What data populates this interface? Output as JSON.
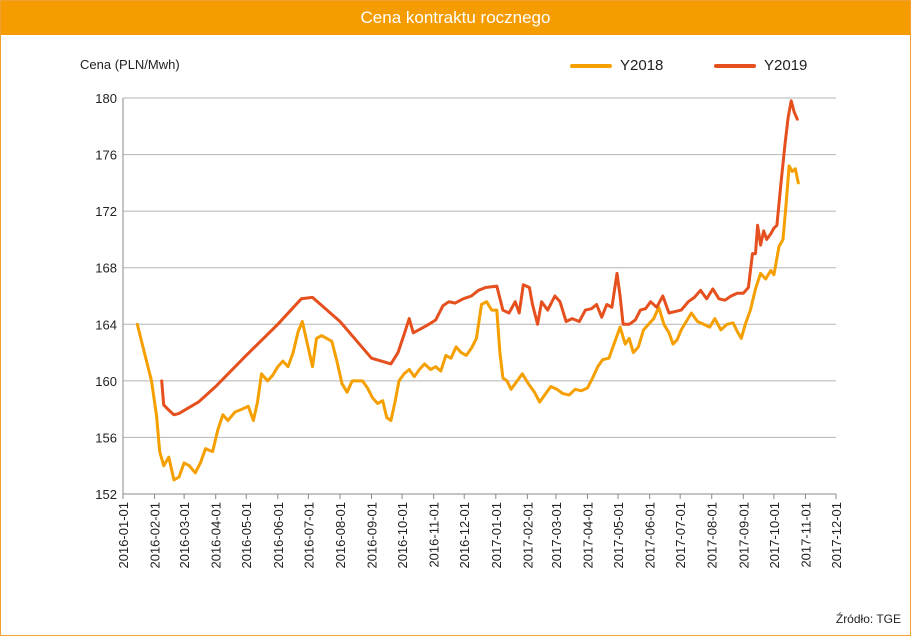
{
  "chart_data": {
    "type": "line",
    "title": "Cena kontraktu  rocznego",
    "ylabel": "Cena (PLN/Mwh)",
    "source": "Źródło: TGE",
    "ylim": [
      152,
      180
    ],
    "yticks": [
      "180",
      "176",
      "172",
      "168",
      "164",
      "160",
      "156",
      "152"
    ],
    "yticks_values": [
      180,
      176,
      172,
      168,
      164,
      160,
      156,
      152
    ],
    "x_ticks": [
      "2016-01-01",
      "2016-02-01",
      "2016-03-01",
      "2016-04-01",
      "2016-05-01",
      "2016-06-01",
      "2016-07-01",
      "2016-08-01",
      "2016-09-01",
      "2016-10-01",
      "2016-11-01",
      "2016-12-01",
      "2017-01-01",
      "2017-02-01",
      "2017-03-01",
      "2017-04-01",
      "2017-05-01",
      "2017-06-01",
      "2017-07-01",
      "2017-08-01",
      "2017-09-01",
      "2017-10-01",
      "2017-11-01",
      "2017-12-01"
    ],
    "grid": "horizontal",
    "legend_position": "top-right",
    "series": [
      {
        "name": "Y2018",
        "color": "#f5a000",
        "points": [
          [
            "2016-01-15",
            164.0
          ],
          [
            "2016-01-22",
            162.0
          ],
          [
            "2016-01-29",
            160.0
          ],
          [
            "2016-02-03",
            157.5
          ],
          [
            "2016-02-06",
            155.0
          ],
          [
            "2016-02-10",
            154.0
          ],
          [
            "2016-02-15",
            154.6
          ],
          [
            "2016-02-20",
            153.0
          ],
          [
            "2016-02-25",
            153.2
          ],
          [
            "2016-03-01",
            154.2
          ],
          [
            "2016-03-06",
            154.0
          ],
          [
            "2016-03-12",
            153.5
          ],
          [
            "2016-03-17",
            154.2
          ],
          [
            "2016-03-22",
            155.2
          ],
          [
            "2016-03-29",
            155.0
          ],
          [
            "2016-04-03",
            156.5
          ],
          [
            "2016-04-08",
            157.6
          ],
          [
            "2016-04-13",
            157.2
          ],
          [
            "2016-04-20",
            157.8
          ],
          [
            "2016-04-27",
            158.0
          ],
          [
            "2016-05-03",
            158.2
          ],
          [
            "2016-05-08",
            157.2
          ],
          [
            "2016-05-12",
            158.5
          ],
          [
            "2016-05-16",
            160.5
          ],
          [
            "2016-05-22",
            160.0
          ],
          [
            "2016-05-27",
            160.4
          ],
          [
            "2016-06-01",
            161.0
          ],
          [
            "2016-06-06",
            161.4
          ],
          [
            "2016-06-11",
            161.0
          ],
          [
            "2016-06-16",
            162.0
          ],
          [
            "2016-06-21",
            163.5
          ],
          [
            "2016-06-25",
            164.2
          ],
          [
            "2016-06-30",
            162.6
          ],
          [
            "2016-07-05",
            161.0
          ],
          [
            "2016-07-09",
            163.0
          ],
          [
            "2016-07-14",
            163.2
          ],
          [
            "2016-07-19",
            163.0
          ],
          [
            "2016-07-24",
            162.8
          ],
          [
            "2016-07-29",
            161.4
          ],
          [
            "2016-08-03",
            159.8
          ],
          [
            "2016-08-08",
            159.2
          ],
          [
            "2016-08-13",
            160.0
          ],
          [
            "2016-08-18",
            160.0
          ],
          [
            "2016-08-23",
            160.0
          ],
          [
            "2016-08-28",
            159.5
          ],
          [
            "2016-09-02",
            158.8
          ],
          [
            "2016-09-07",
            158.4
          ],
          [
            "2016-09-12",
            158.6
          ],
          [
            "2016-09-16",
            157.4
          ],
          [
            "2016-09-20",
            157.2
          ],
          [
            "2016-09-24",
            158.5
          ],
          [
            "2016-09-28",
            160.0
          ],
          [
            "2016-10-03",
            160.5
          ],
          [
            "2016-10-08",
            160.8
          ],
          [
            "2016-10-13",
            160.3
          ],
          [
            "2016-10-18",
            160.8
          ],
          [
            "2016-10-23",
            161.2
          ],
          [
            "2016-10-29",
            160.8
          ],
          [
            "2016-11-03",
            161.0
          ],
          [
            "2016-11-08",
            160.7
          ],
          [
            "2016-11-13",
            161.8
          ],
          [
            "2016-11-18",
            161.6
          ],
          [
            "2016-11-23",
            162.4
          ],
          [
            "2016-11-28",
            162.0
          ],
          [
            "2016-12-03",
            161.8
          ],
          [
            "2016-12-08",
            162.3
          ],
          [
            "2016-12-13",
            163.0
          ],
          [
            "2016-12-18",
            165.4
          ],
          [
            "2016-12-23",
            165.6
          ],
          [
            "2016-12-28",
            165.0
          ],
          [
            "2017-01-02",
            165.0
          ],
          [
            "2017-01-05",
            162.0
          ],
          [
            "2017-01-08",
            160.2
          ],
          [
            "2017-01-12",
            160.0
          ],
          [
            "2017-01-16",
            159.4
          ],
          [
            "2017-01-22",
            160.0
          ],
          [
            "2017-01-27",
            160.5
          ],
          [
            "2017-02-02",
            159.8
          ],
          [
            "2017-02-08",
            159.2
          ],
          [
            "2017-02-13",
            158.5
          ],
          [
            "2017-02-18",
            159.0
          ],
          [
            "2017-02-24",
            159.6
          ],
          [
            "2017-03-02",
            159.4
          ],
          [
            "2017-03-08",
            159.1
          ],
          [
            "2017-03-14",
            159.0
          ],
          [
            "2017-03-20",
            159.4
          ],
          [
            "2017-03-26",
            159.3
          ],
          [
            "2017-04-01",
            159.5
          ],
          [
            "2017-04-06",
            160.2
          ],
          [
            "2017-04-11",
            161.0
          ],
          [
            "2017-04-16",
            161.5
          ],
          [
            "2017-04-22",
            161.6
          ],
          [
            "2017-04-28",
            162.8
          ],
          [
            "2017-05-03",
            163.8
          ],
          [
            "2017-05-08",
            162.6
          ],
          [
            "2017-05-12",
            163.0
          ],
          [
            "2017-05-16",
            162.0
          ],
          [
            "2017-05-21",
            162.4
          ],
          [
            "2017-05-26",
            163.6
          ],
          [
            "2017-05-31",
            164.0
          ],
          [
            "2017-06-05",
            164.4
          ],
          [
            "2017-06-10",
            165.2
          ],
          [
            "2017-06-15",
            164.0
          ],
          [
            "2017-06-20",
            163.4
          ],
          [
            "2017-06-24",
            162.6
          ],
          [
            "2017-06-28",
            162.9
          ],
          [
            "2017-07-02",
            163.6
          ],
          [
            "2017-07-07",
            164.2
          ],
          [
            "2017-07-12",
            164.8
          ],
          [
            "2017-07-18",
            164.2
          ],
          [
            "2017-07-24",
            164.0
          ],
          [
            "2017-07-30",
            163.8
          ],
          [
            "2017-08-04",
            164.4
          ],
          [
            "2017-08-10",
            163.6
          ],
          [
            "2017-08-16",
            164.0
          ],
          [
            "2017-08-22",
            164.1
          ],
          [
            "2017-08-26",
            163.5
          ],
          [
            "2017-08-30",
            163.0
          ],
          [
            "2017-09-03",
            164.0
          ],
          [
            "2017-09-08",
            165.0
          ],
          [
            "2017-09-13",
            166.5
          ],
          [
            "2017-09-18",
            167.6
          ],
          [
            "2017-09-23",
            167.2
          ],
          [
            "2017-09-28",
            167.8
          ],
          [
            "2017-10-01",
            167.5
          ],
          [
            "2017-10-06",
            169.5
          ],
          [
            "2017-10-10",
            170.0
          ],
          [
            "2017-10-13",
            172.5
          ],
          [
            "2017-10-16",
            175.2
          ],
          [
            "2017-10-19",
            174.8
          ],
          [
            "2017-10-22",
            175.0
          ],
          [
            "2017-10-25",
            174.0
          ]
        ]
      },
      {
        "name": "Y2019",
        "color": "#e5501e",
        "points": [
          [
            "2016-02-08",
            160.0
          ],
          [
            "2016-02-10",
            158.3
          ],
          [
            "2016-02-14",
            158.0
          ],
          [
            "2016-02-20",
            157.6
          ],
          [
            "2016-02-25",
            157.7
          ],
          [
            "2016-03-15",
            158.5
          ],
          [
            "2016-04-01",
            159.6
          ],
          [
            "2016-05-01",
            161.8
          ],
          [
            "2016-06-01",
            164.0
          ],
          [
            "2016-06-24",
            165.8
          ],
          [
            "2016-07-05",
            165.9
          ],
          [
            "2016-08-01",
            164.2
          ],
          [
            "2016-09-01",
            161.6
          ],
          [
            "2016-09-20",
            161.2
          ],
          [
            "2016-09-27",
            162.0
          ],
          [
            "2016-10-04",
            163.5
          ],
          [
            "2016-10-08",
            164.4
          ],
          [
            "2016-10-12",
            163.4
          ],
          [
            "2016-10-25",
            163.9
          ],
          [
            "2016-11-03",
            164.3
          ],
          [
            "2016-11-10",
            165.3
          ],
          [
            "2016-11-16",
            165.6
          ],
          [
            "2016-11-22",
            165.5
          ],
          [
            "2016-11-30",
            165.8
          ],
          [
            "2016-12-08",
            166.0
          ],
          [
            "2016-12-15",
            166.4
          ],
          [
            "2016-12-22",
            166.6
          ],
          [
            "2017-01-02",
            166.7
          ],
          [
            "2017-01-08",
            165.0
          ],
          [
            "2017-01-14",
            164.8
          ],
          [
            "2017-01-20",
            165.6
          ],
          [
            "2017-01-24",
            164.8
          ],
          [
            "2017-01-28",
            166.8
          ],
          [
            "2017-02-03",
            166.6
          ],
          [
            "2017-02-06",
            165.4
          ],
          [
            "2017-02-11",
            164.0
          ],
          [
            "2017-02-15",
            165.6
          ],
          [
            "2017-02-21",
            165.0
          ],
          [
            "2017-02-28",
            166.0
          ],
          [
            "2017-03-05",
            165.6
          ],
          [
            "2017-03-11",
            164.2
          ],
          [
            "2017-03-17",
            164.4
          ],
          [
            "2017-03-24",
            164.2
          ],
          [
            "2017-03-30",
            165.0
          ],
          [
            "2017-04-05",
            165.1
          ],
          [
            "2017-04-10",
            165.4
          ],
          [
            "2017-04-15",
            164.5
          ],
          [
            "2017-04-20",
            165.4
          ],
          [
            "2017-04-25",
            165.2
          ],
          [
            "2017-04-30",
            167.6
          ],
          [
            "2017-05-03",
            166.0
          ],
          [
            "2017-05-06",
            164.0
          ],
          [
            "2017-05-12",
            164.0
          ],
          [
            "2017-05-18",
            164.3
          ],
          [
            "2017-05-23",
            165.0
          ],
          [
            "2017-05-28",
            165.1
          ],
          [
            "2017-06-02",
            165.6
          ],
          [
            "2017-06-08",
            165.2
          ],
          [
            "2017-06-14",
            166.0
          ],
          [
            "2017-06-20",
            164.8
          ],
          [
            "2017-06-26",
            164.9
          ],
          [
            "2017-07-02",
            165.0
          ],
          [
            "2017-07-09",
            165.6
          ],
          [
            "2017-07-15",
            165.9
          ],
          [
            "2017-07-21",
            166.4
          ],
          [
            "2017-07-27",
            165.8
          ],
          [
            "2017-08-02",
            166.5
          ],
          [
            "2017-08-08",
            165.8
          ],
          [
            "2017-08-14",
            165.7
          ],
          [
            "2017-08-20",
            166.0
          ],
          [
            "2017-08-26",
            166.2
          ],
          [
            "2017-09-01",
            166.2
          ],
          [
            "2017-09-06",
            166.6
          ],
          [
            "2017-09-10",
            169.0
          ],
          [
            "2017-09-13",
            169.0
          ],
          [
            "2017-09-15",
            171.0
          ],
          [
            "2017-09-18",
            169.6
          ],
          [
            "2017-09-21",
            170.6
          ],
          [
            "2017-09-24",
            170.0
          ],
          [
            "2017-09-28",
            170.4
          ],
          [
            "2017-10-01",
            170.8
          ],
          [
            "2017-10-04",
            171.0
          ],
          [
            "2017-10-08",
            174.0
          ],
          [
            "2017-10-12",
            176.8
          ],
          [
            "2017-10-15",
            178.6
          ],
          [
            "2017-10-18",
            179.8
          ],
          [
            "2017-10-21",
            179.0
          ],
          [
            "2017-10-24",
            178.5
          ]
        ]
      }
    ]
  }
}
